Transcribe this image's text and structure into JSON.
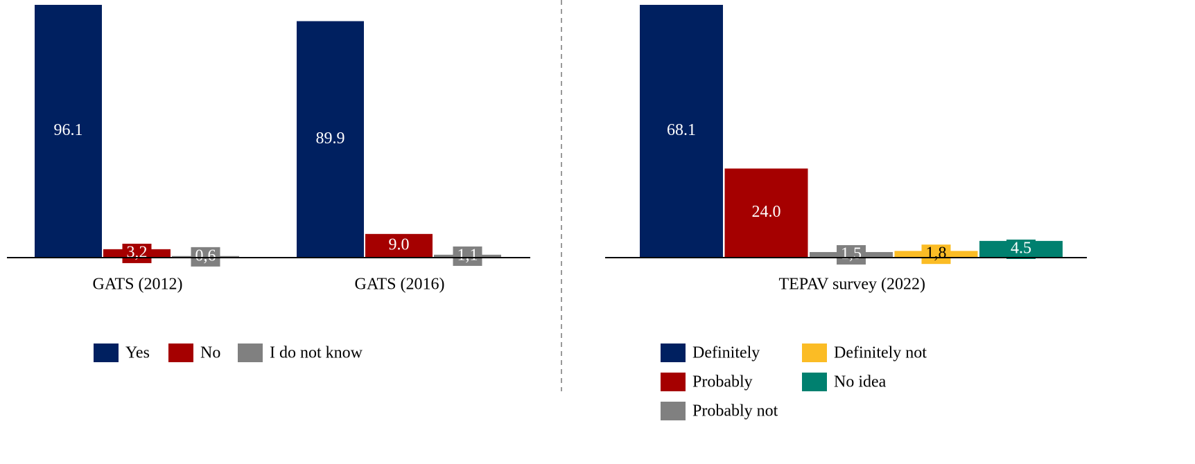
{
  "chart_data": [
    {
      "type": "bar",
      "categories": [
        "GATS (2012)",
        "GATS (2016)"
      ],
      "legend": "bottom",
      "series": [
        {
          "name": "Yes",
          "color": "#002060",
          "values": [
            96.1,
            89.9
          ],
          "value_labels": [
            "96.1",
            "89.9"
          ]
        },
        {
          "name": "No",
          "color": "#a50000",
          "values": [
            3.2,
            9.0
          ],
          "value_labels": [
            "3,2",
            "9.0"
          ]
        },
        {
          "name": "I do not know",
          "color": "#808080",
          "values": [
            0.6,
            1.1
          ],
          "value_labels": [
            "0,6",
            "1,1"
          ]
        }
      ]
    },
    {
      "type": "bar",
      "categories": [
        "TEPAV survey (2022)"
      ],
      "legend": "bottom",
      "series": [
        {
          "name": "Definitely",
          "color": "#002060",
          "values": [
            68.1
          ],
          "value_labels": [
            "68.1"
          ]
        },
        {
          "name": "Probably",
          "color": "#a50000",
          "values": [
            24.0
          ],
          "value_labels": [
            "24.0"
          ]
        },
        {
          "name": "Probably not",
          "color": "#808080",
          "values": [
            1.5
          ],
          "value_labels": [
            "1,5"
          ]
        },
        {
          "name": "Definitely not",
          "color": "#fbbc25",
          "values": [
            1.8
          ],
          "value_labels": [
            "1,8"
          ]
        },
        {
          "name": "No idea",
          "color": "#00806f",
          "values": [
            4.5
          ],
          "value_labels": [
            "4.5"
          ]
        }
      ]
    }
  ]
}
